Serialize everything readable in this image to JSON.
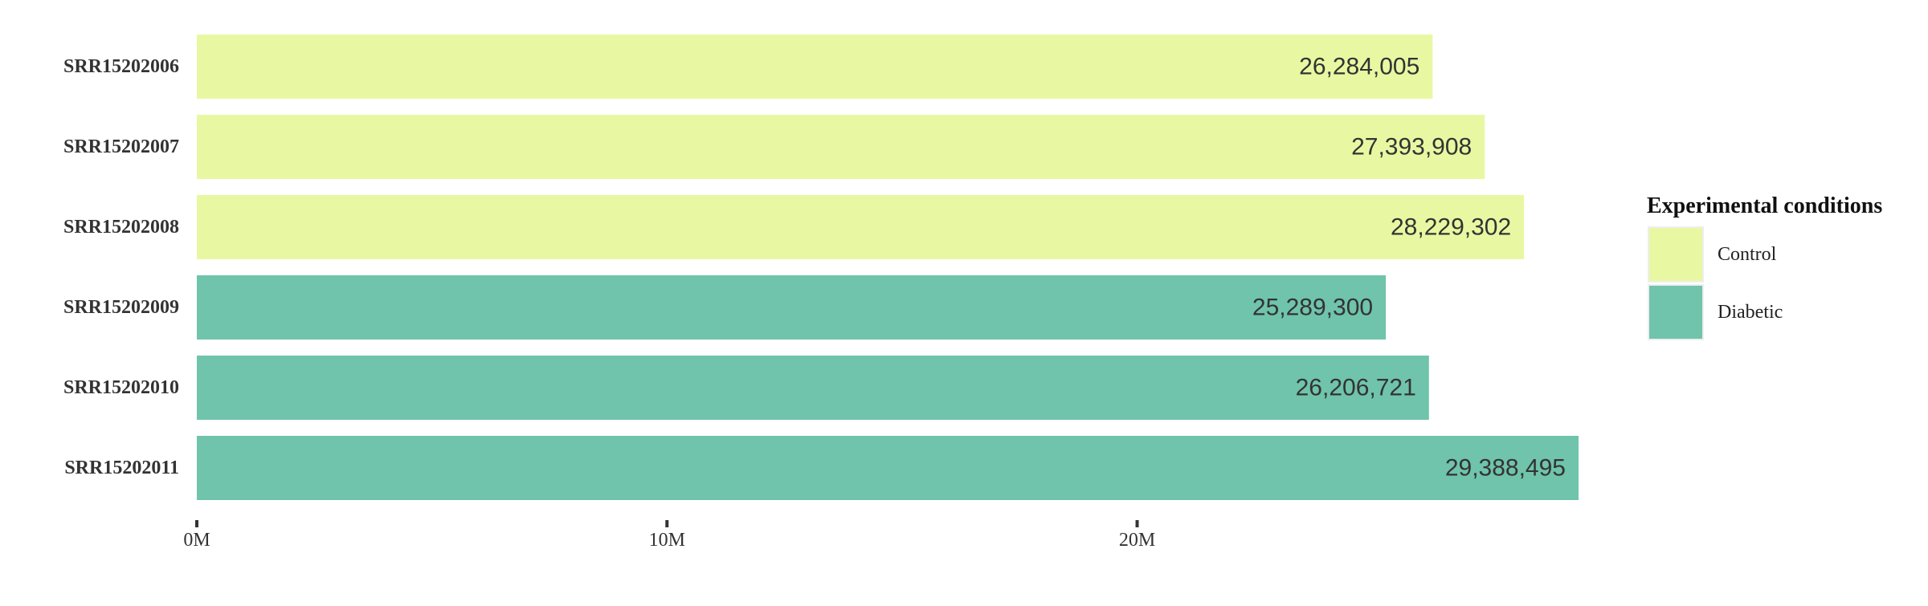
{
  "chart_data": {
    "type": "bar",
    "orientation": "horizontal",
    "title": "",
    "xlabel": "",
    "ylabel": "",
    "categories": [
      "SRR15202006",
      "SRR15202007",
      "SRR15202008",
      "SRR15202009",
      "SRR15202010",
      "SRR15202011"
    ],
    "values": [
      26284005,
      27393908,
      28229302,
      25289300,
      26206721,
      29388495
    ],
    "value_labels": [
      "26,284,005",
      "27,393,908",
      "28,229,302",
      "25,289,300",
      "26,206,721",
      "29,388,495"
    ],
    "groups": [
      "Control",
      "Control",
      "Control",
      "Diabetic",
      "Diabetic",
      "Diabetic"
    ],
    "xlim": [
      0,
      29388495
    ],
    "x_ticks": [
      {
        "value": 0,
        "label": "0M"
      },
      {
        "value": 10000000,
        "label": "10M"
      },
      {
        "value": 20000000,
        "label": "20M"
      }
    ],
    "grid": false,
    "legend": {
      "title": "Experimental conditions",
      "placement": "right",
      "entries": [
        {
          "name": "Control",
          "color": "#e8f8a2"
        },
        {
          "name": "Diabetic",
          "color": "#6fc4ab"
        }
      ]
    }
  }
}
